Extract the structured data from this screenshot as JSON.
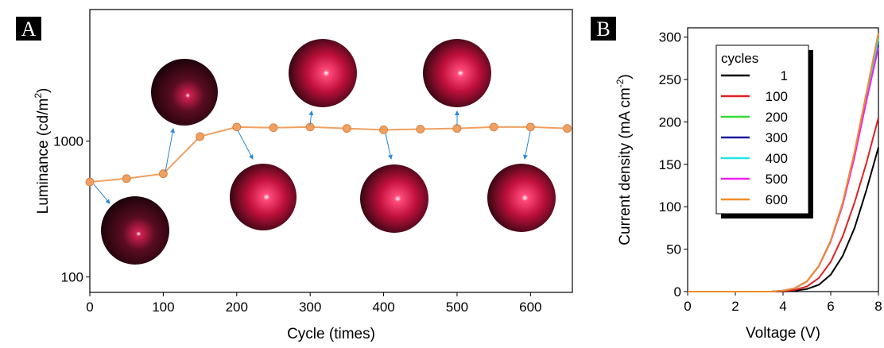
{
  "chart_data": [
    {
      "type": "line",
      "panel_label": "A",
      "x_label": "Cycle (times)",
      "y_label": "Luminance (cd/m",
      "y_label_sup": "2",
      "y_label_end": ")",
      "log_y": true,
      "markers": true,
      "color": "#f0a060",
      "x": [
        0,
        50,
        100,
        150,
        200,
        250,
        300,
        350,
        400,
        450,
        500,
        550,
        600,
        650
      ],
      "values": [
        500,
        530,
        575,
        1080,
        1270,
        1255,
        1270,
        1240,
        1210,
        1225,
        1240,
        1270,
        1270,
        1240
      ],
      "xlim": [
        0,
        657
      ],
      "xticks": [
        0,
        100,
        200,
        300,
        400,
        500,
        600
      ],
      "ylim": [
        77,
        9300
      ],
      "yticks": [
        100,
        1000
      ]
    },
    {
      "type": "line",
      "panel_label": "B",
      "x_label": "Voltage (V)",
      "y_label": "Current density (mA cm",
      "y_label_sup": "-2",
      "y_label_end": ")",
      "log_y": false,
      "markers": false,
      "legend_title": "cycles",
      "legend": "upper-left",
      "x": [
        0,
        1,
        2,
        3,
        3.5,
        4,
        4.5,
        5,
        5.5,
        6,
        6.5,
        7,
        7.5,
        8
      ],
      "series": [
        {
          "name": "1",
          "color": "#000000",
          "values": [
            0,
            0,
            0,
            0,
            0,
            0,
            1,
            3,
            8,
            20,
            42,
            75,
            120,
            170
          ]
        },
        {
          "name": "100",
          "color": "#e02020",
          "values": [
            0,
            0,
            0,
            0,
            0,
            0.5,
            2,
            6,
            16,
            35,
            65,
            105,
            152,
            205
          ]
        },
        {
          "name": "200",
          "color": "#33dd33",
          "values": [
            0,
            0,
            0,
            0,
            0,
            1,
            4,
            12,
            30,
            60,
            104,
            163,
            232,
            300
          ]
        },
        {
          "name": "300",
          "color": "#1a1aa0",
          "values": [
            0,
            0,
            0,
            0,
            0,
            1,
            4,
            12,
            30,
            60,
            103,
            161,
            229,
            295
          ]
        },
        {
          "name": "400",
          "color": "#22e6e6",
          "values": [
            0,
            0,
            0,
            0,
            0,
            1,
            4,
            12,
            30,
            60,
            104,
            162,
            231,
            298
          ]
        },
        {
          "name": "500",
          "color": "#ee22ee",
          "values": [
            0,
            0,
            0,
            0,
            0,
            1,
            4,
            12,
            30,
            59,
            102,
            159,
            225,
            288
          ]
        },
        {
          "name": "600",
          "color": "#f28c28",
          "values": [
            0,
            0,
            0,
            0,
            0,
            1,
            4,
            12,
            30,
            60,
            105,
            165,
            235,
            305
          ]
        }
      ],
      "xlim": [
        0,
        8
      ],
      "xticks": [
        0,
        2,
        4,
        6,
        8
      ],
      "ylim": [
        0,
        311
      ],
      "yticks": [
        0,
        50,
        100,
        150,
        200,
        250,
        300
      ]
    }
  ]
}
